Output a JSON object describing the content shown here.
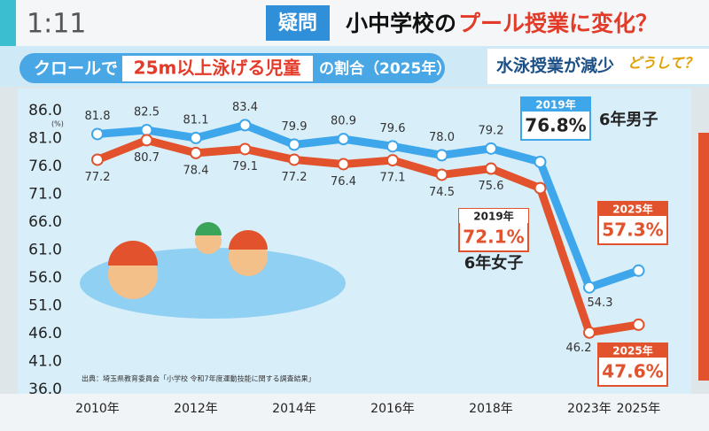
{
  "header": {
    "clock": "1:11",
    "tag": "疑問",
    "title_part1": "小中学校の",
    "title_part2": "プール授業に変化？",
    "subtitle_part1": "クロールで",
    "subtitle_highlight": "25m以上泳げる児童",
    "subtitle_part2": "の割合（2025年）",
    "side_caption": "水泳授業が減少",
    "side_question": "どうして？"
  },
  "chart_data": {
    "type": "line",
    "categories": [
      "2010年",
      null,
      "2012年",
      null,
      "2014年",
      null,
      "2016年",
      null,
      "2018年",
      null,
      "2023年",
      "2025年"
    ],
    "series": [
      {
        "name": "6年男子",
        "color": "#3ea6ea",
        "values": [
          81.8,
          82.5,
          81.1,
          83.4,
          79.9,
          80.9,
          79.6,
          78.0,
          79.2,
          76.8,
          54.3,
          57.3
        ],
        "value_labels": [
          "81.8",
          "82.5",
          "81.1",
          "83.4",
          "79.9",
          "80.9",
          "79.6",
          "78.0",
          "79.2",
          "76.8%",
          "54.3",
          "57.3%"
        ]
      },
      {
        "name": "6年女子",
        "color": "#e2522c",
        "values": [
          77.2,
          80.7,
          78.4,
          79.1,
          77.2,
          76.4,
          77.1,
          74.5,
          75.6,
          72.1,
          46.2,
          47.6
        ],
        "value_labels": [
          "77.2",
          "80.7",
          "78.4",
          "79.1",
          "77.2",
          "76.4",
          "77.1",
          "74.5",
          "75.6",
          "72.1%",
          "46.2",
          "47.6%"
        ]
      }
    ],
    "annotations": [
      "2019年",
      "2019年",
      "2025年",
      "2025年"
    ],
    "y_unit": "(%)",
    "ylim": [
      36,
      86
    ],
    "yticks": [
      {
        "value": 36,
        "label": "36.0"
      },
      {
        "value": 41,
        "label": "41.0"
      },
      {
        "value": 46,
        "label": "46.0"
      },
      {
        "value": 51,
        "label": "51.0"
      },
      {
        "value": 56,
        "label": "56.0"
      },
      {
        "value": 61,
        "label": "61.0"
      },
      {
        "value": 66,
        "label": "66.0"
      },
      {
        "value": 71,
        "label": "71.0"
      },
      {
        "value": 76,
        "label": "76.0"
      },
      {
        "value": 81,
        "label": "81.0"
      },
      {
        "value": 86,
        "label": "86.0"
      }
    ],
    "grid": false,
    "source": "出典：埼玉県教育委員会「小学校 令和7年度運動技能に関する調査結果」"
  }
}
